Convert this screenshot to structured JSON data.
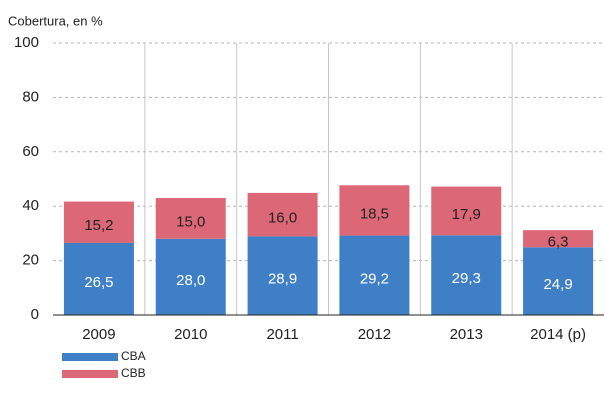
{
  "chart_data": {
    "type": "stacked_bar",
    "y_label": "Cobertura, en %",
    "categories": [
      "2009",
      "2010",
      "2011",
      "2012",
      "2013",
      "2014 (p)"
    ],
    "series": [
      {
        "name": "CBA",
        "color": "#3f7fc6",
        "values": [
          26.5,
          28.0,
          28.9,
          29.2,
          29.3,
          24.9
        ],
        "value_labels": [
          "26,5",
          "28,0",
          "28,9",
          "29,2",
          "29,3",
          "24,9"
        ],
        "label_color": "#ffffff"
      },
      {
        "name": "CBB",
        "color": "#dc6776",
        "values": [
          15.2,
          15.0,
          16.0,
          18.5,
          17.9,
          6.3
        ],
        "value_labels": [
          "15,2",
          "15,0",
          "16,0",
          "18,5",
          "17,9",
          "6,3"
        ],
        "label_color": "#222222"
      }
    ],
    "ylim": [
      0,
      100
    ],
    "yticks": [
      0,
      20,
      40,
      60,
      80,
      100
    ],
    "grid": true,
    "legend": "bottom-left"
  }
}
